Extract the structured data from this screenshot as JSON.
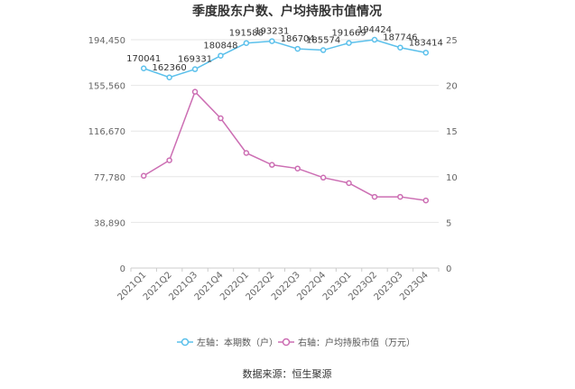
{
  "chart_data": {
    "type": "line",
    "title": "季度股东户数、户均持股市值情况",
    "categories": [
      "2021Q1",
      "2021Q2",
      "2021Q3",
      "2021Q4",
      "2022Q1",
      "2022Q2",
      "2022Q3",
      "2022Q4",
      "2023Q1",
      "2023Q2",
      "2023Q3",
      "2023Q4"
    ],
    "left_axis": {
      "ticks": [
        "0",
        "38,890",
        "77,780",
        "116,670",
        "155,560",
        "194,450"
      ],
      "range": [
        0,
        194450
      ]
    },
    "right_axis": {
      "ticks": [
        "0",
        "5",
        "10",
        "15",
        "20",
        "25"
      ],
      "range": [
        0,
        25
      ]
    },
    "series": [
      {
        "name": "左轴：本期数（户）",
        "axis": "left",
        "color": "#5bc0eb",
        "values": [
          170041,
          162360,
          169331,
          180848,
          191588,
          193231,
          186704,
          185574,
          191669,
          194424,
          187746,
          183414
        ],
        "labels": [
          "170041",
          "162360",
          "169331",
          "180848",
          "191588",
          "193231",
          "186704",
          "185574",
          "191669",
          "194424",
          "187746",
          "183414"
        ]
      },
      {
        "name": "右轴：户均持股市值（万元）",
        "axis": "right",
        "color": "#cc6eb3",
        "values": [
          10.1,
          11.8,
          19.3,
          16.4,
          12.6,
          11.3,
          10.9,
          9.9,
          9.3,
          7.8,
          7.8,
          7.4
        ]
      }
    ],
    "source": "数据来源：恒生聚源"
  }
}
